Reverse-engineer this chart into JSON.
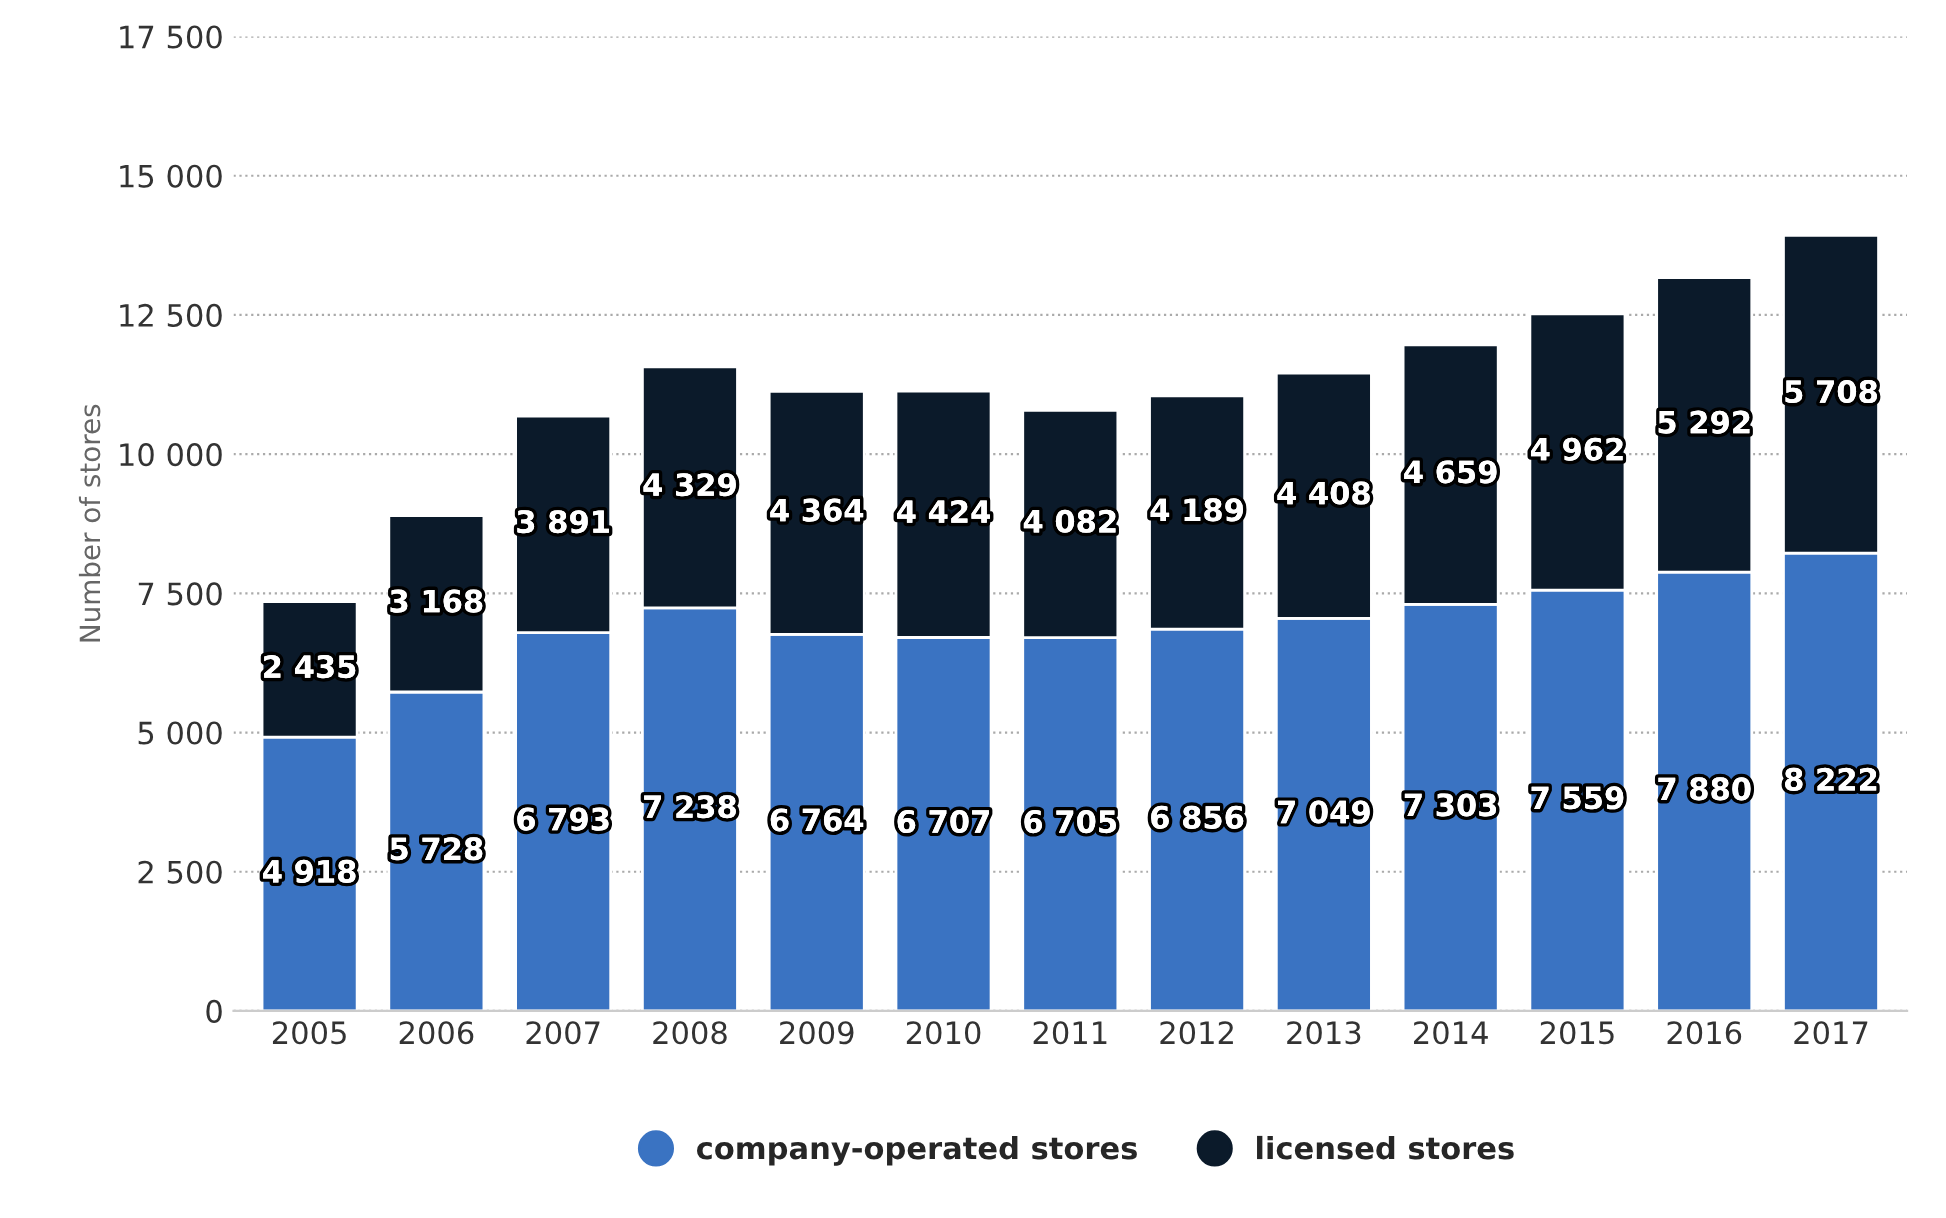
{
  "chart_data": {
    "type": "bar",
    "stacked": true,
    "ylabel": "Number of stores",
    "categories": [
      "2005",
      "2006",
      "2007",
      "2008",
      "2009",
      "2010",
      "2011",
      "2012",
      "2013",
      "2014",
      "2015",
      "2016",
      "2017"
    ],
    "series": [
      {
        "name": "company-operated stores",
        "color": "#3a73c2",
        "values": [
          4918,
          5728,
          6793,
          7238,
          6764,
          6707,
          6705,
          6856,
          7049,
          7303,
          7559,
          7880,
          8222
        ],
        "value_labels": [
          "4 918",
          "5 728",
          "6 793",
          "7 238",
          "6 764",
          "6 707",
          "6 705",
          "6 856",
          "7 049",
          "7 303",
          "7 559",
          "7 880",
          "8 222"
        ]
      },
      {
        "name": "licensed stores",
        "color": "#0b1a2a",
        "values": [
          2435,
          3168,
          3891,
          4329,
          4364,
          4424,
          4082,
          4189,
          4408,
          4659,
          4962,
          5292,
          5708
        ],
        "value_labels": [
          "2 435",
          "3 168",
          "3 891",
          "4 329",
          "4 364",
          "4 424",
          "4 082",
          "4 189",
          "4 408",
          "4 659",
          "4 962",
          "5 292",
          "5 708"
        ]
      }
    ],
    "ylim": [
      0,
      17500
    ],
    "yticks": [
      0,
      {
        "value": 2500,
        "label": "2 500"
      },
      {
        "value": 5000,
        "label": "5 000"
      },
      {
        "value": 7500,
        "label": "7 500"
      },
      {
        "value": 10000,
        "label": "10 000"
      },
      {
        "value": 12500,
        "label": "12 500"
      },
      {
        "value": 15000,
        "label": "15 000"
      },
      {
        "value": 17500,
        "label": "17 500"
      }
    ],
    "grid": "y",
    "legend": "bottom"
  }
}
